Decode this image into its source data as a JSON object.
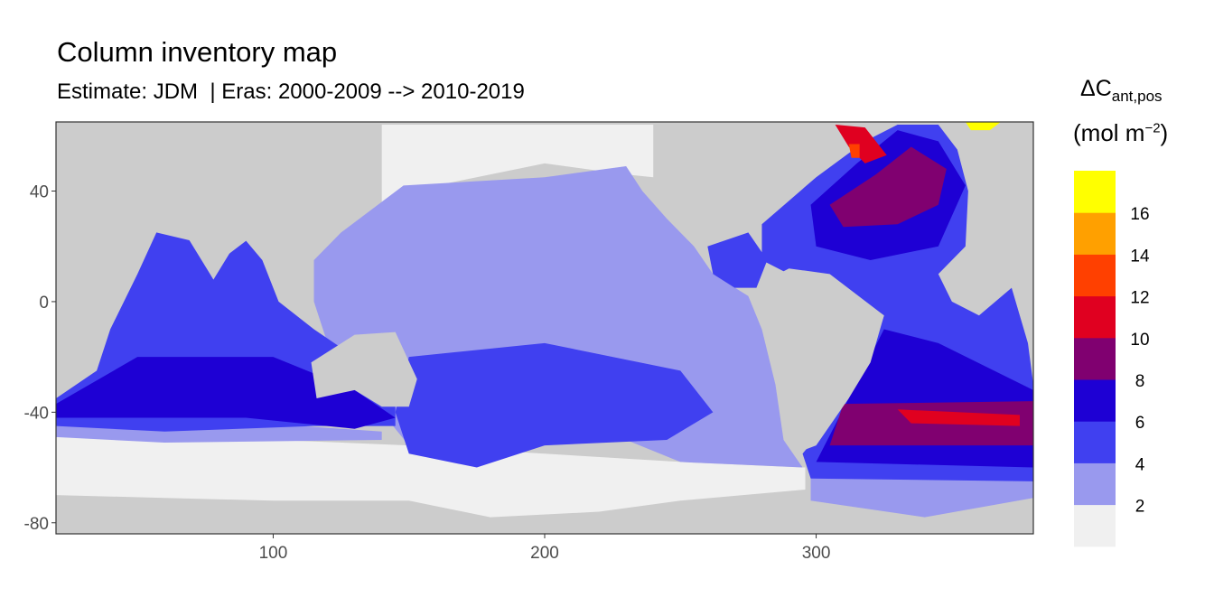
{
  "chart_data": {
    "type": "heatmap",
    "title": "Column inventory map",
    "subtitle": "Estimate: JDM  | Eras: 2000-2009 --> 2010-2019",
    "xlabel": "",
    "ylabel": "",
    "xlim": [
      20,
      380
    ],
    "ylim": [
      -84,
      65
    ],
    "x_ticks": [
      "100",
      "200",
      "300"
    ],
    "x_tick_values": [
      100,
      200,
      300
    ],
    "y_ticks": [
      "40",
      "0",
      "-40",
      "-80"
    ],
    "y_tick_values": [
      40,
      0,
      -40,
      -80
    ],
    "grid": false,
    "land_color": "#cccccc",
    "legend": {
      "title_main": "ΔC",
      "title_sub": "ant,pos",
      "unit_main": "(mol m",
      "unit_sup": "−2",
      "unit_close": ")",
      "placement": "right",
      "bin_colors": [
        "#f0f0f0",
        "#9999ee",
        "#4040f0",
        "#1e00d4",
        "#800070",
        "#e00020",
        "#ff4000",
        "#ffa000",
        "#ffff00"
      ],
      "break_labels": [
        "2",
        "4",
        "6",
        "8",
        "10",
        "12",
        "14",
        "16"
      ]
    },
    "regions": [
      {
        "name": "southern-ocean-band",
        "level": 0,
        "lonlat": [
          [
            20,
            -47
          ],
          [
            60,
            -49
          ],
          [
            100,
            -50
          ],
          [
            150,
            -52
          ],
          [
            200,
            -55
          ],
          [
            250,
            -58
          ],
          [
            296,
            -60
          ],
          [
            296,
            -68
          ],
          [
            250,
            -72
          ],
          [
            220,
            -76
          ],
          [
            180,
            -78
          ],
          [
            150,
            -72
          ],
          [
            100,
            -72
          ],
          [
            60,
            -71
          ],
          [
            20,
            -70
          ]
        ]
      },
      {
        "name": "arctic-north-pacific",
        "level": 0,
        "lonlat": [
          [
            140,
            64
          ],
          [
            240,
            64
          ],
          [
            240,
            45
          ],
          [
            230,
            46
          ],
          [
            200,
            50
          ],
          [
            160,
            42
          ],
          [
            140,
            32
          ]
        ]
      },
      {
        "name": "pacific",
        "level": 1,
        "lonlat": [
          [
            125,
            25
          ],
          [
            148,
            42
          ],
          [
            200,
            45
          ],
          [
            230,
            49
          ],
          [
            236,
            40
          ],
          [
            245,
            30
          ],
          [
            255,
            20
          ],
          [
            262,
            10
          ],
          [
            275,
            2
          ],
          [
            280,
            -10
          ],
          [
            285,
            -30
          ],
          [
            288,
            -50
          ],
          [
            295,
            -60
          ],
          [
            250,
            -58
          ],
          [
            230,
            -50
          ],
          [
            200,
            -52
          ],
          [
            170,
            -55
          ],
          [
            150,
            -52
          ],
          [
            140,
            -40
          ],
          [
            120,
            -15
          ],
          [
            115,
            0
          ],
          [
            115,
            15
          ]
        ]
      },
      {
        "name": "indian-ocean-west-mid",
        "level": 1,
        "lonlat": [
          [
            20,
            -42
          ],
          [
            60,
            -44
          ],
          [
            110,
            -45
          ],
          [
            140,
            -47
          ],
          [
            140,
            -50
          ],
          [
            60,
            -51
          ],
          [
            20,
            -49
          ]
        ]
      },
      {
        "name": "south-west-pacific",
        "level": 2,
        "lonlat": [
          [
            150,
            -20
          ],
          [
            200,
            -15
          ],
          [
            250,
            -25
          ],
          [
            262,
            -40
          ],
          [
            245,
            -50
          ],
          [
            200,
            -52
          ],
          [
            175,
            -60
          ],
          [
            150,
            -55
          ],
          [
            145,
            -40
          ]
        ]
      },
      {
        "name": "eastern-tropical-pacific",
        "level": 2,
        "lonlat": [
          [
            260,
            20
          ],
          [
            275,
            25
          ],
          [
            282,
            15
          ],
          [
            278,
            5
          ],
          [
            270,
            5
          ],
          [
            262,
            10
          ]
        ]
      },
      {
        "name": "indian-ocean",
        "level": 2,
        "lonlat": [
          [
            40,
            -10
          ],
          [
            50,
            10
          ],
          [
            57,
            25
          ],
          [
            70,
            22
          ],
          [
            78,
            8
          ],
          [
            82,
            16
          ],
          [
            90,
            22
          ],
          [
            96,
            15
          ],
          [
            102,
            0
          ],
          [
            115,
            -10
          ],
          [
            130,
            -20
          ],
          [
            145,
            -38
          ],
          [
            145,
            -45
          ],
          [
            115,
            -45
          ],
          [
            60,
            -47
          ],
          [
            20,
            -45
          ],
          [
            20,
            -35
          ],
          [
            35,
            -25
          ]
        ]
      },
      {
        "name": "southern-indian-ocean",
        "level": 3,
        "lonlat": [
          [
            20,
            -37
          ],
          [
            50,
            -20
          ],
          [
            100,
            -20
          ],
          [
            130,
            -32
          ],
          [
            145,
            -42
          ],
          [
            130,
            -46
          ],
          [
            90,
            -42
          ],
          [
            60,
            -42
          ],
          [
            20,
            -42
          ]
        ]
      },
      {
        "name": "india",
        "level": -1,
        "lonlat": [
          [
            68,
            24
          ],
          [
            78,
            8
          ],
          [
            88,
            24
          ]
        ]
      },
      {
        "name": "australia",
        "level": -1,
        "lonlat": [
          [
            114,
            -22
          ],
          [
            130,
            -12
          ],
          [
            145,
            -11
          ],
          [
            153,
            -28
          ],
          [
            150,
            -38
          ],
          [
            140,
            -38
          ],
          [
            130,
            -32
          ],
          [
            116,
            -35
          ]
        ]
      },
      {
        "name": "atlantic",
        "level": 2,
        "lonlat": [
          [
            280,
            28
          ],
          [
            300,
            45
          ],
          [
            318,
            58
          ],
          [
            330,
            64
          ],
          [
            345,
            64
          ],
          [
            352,
            55
          ],
          [
            356,
            40
          ],
          [
            355,
            20
          ],
          [
            345,
            10
          ],
          [
            350,
            0
          ],
          [
            360,
            -5
          ],
          [
            372,
            5
          ],
          [
            378,
            -15
          ],
          [
            380,
            -30
          ],
          [
            380,
            -70
          ],
          [
            300,
            -70
          ],
          [
            295,
            -55
          ],
          [
            312,
            -35
          ],
          [
            320,
            -20
          ],
          [
            325,
            -5
          ],
          [
            310,
            5
          ],
          [
            290,
            10
          ],
          [
            280,
            15
          ]
        ]
      },
      {
        "name": "north-atlantic-deep",
        "level": 3,
        "lonlat": [
          [
            298,
            35
          ],
          [
            315,
            50
          ],
          [
            330,
            62
          ],
          [
            345,
            58
          ],
          [
            355,
            42
          ],
          [
            345,
            20
          ],
          [
            320,
            15
          ],
          [
            300,
            20
          ]
        ]
      },
      {
        "name": "north-atlantic-core",
        "level": 4,
        "lonlat": [
          [
            305,
            35
          ],
          [
            322,
            46
          ],
          [
            335,
            56
          ],
          [
            348,
            48
          ],
          [
            345,
            35
          ],
          [
            330,
            28
          ],
          [
            310,
            27
          ]
        ]
      },
      {
        "name": "labrador-sea",
        "level": 5,
        "lonlat": [
          [
            307,
            64
          ],
          [
            318,
            63
          ],
          [
            326,
            53
          ],
          [
            318,
            50
          ],
          [
            312,
            56
          ]
        ]
      },
      {
        "name": "labrador-edge",
        "level": 6,
        "lonlat": [
          [
            312,
            57
          ],
          [
            316,
            57
          ],
          [
            316,
            52
          ],
          [
            313,
            52
          ]
        ]
      },
      {
        "name": "nordic-seas",
        "level": 8,
        "lonlat": [
          [
            355,
            65
          ],
          [
            368,
            65
          ],
          [
            364,
            62
          ],
          [
            357,
            62
          ]
        ]
      },
      {
        "name": "south-atlantic-deep",
        "level": 3,
        "lonlat": [
          [
            325,
            -10
          ],
          [
            345,
            -15
          ],
          [
            380,
            -32
          ],
          [
            380,
            -60
          ],
          [
            300,
            -58
          ],
          [
            312,
            -35
          ]
        ]
      },
      {
        "name": "south-atlantic-core",
        "level": 4,
        "lonlat": [
          [
            310,
            -37
          ],
          [
            380,
            -36
          ],
          [
            380,
            -52
          ],
          [
            305,
            -52
          ]
        ]
      },
      {
        "name": "south-atlantic-max",
        "level": 5,
        "lonlat": [
          [
            330,
            -39
          ],
          [
            375,
            -41
          ],
          [
            375,
            -45
          ],
          [
            335,
            -44
          ]
        ]
      },
      {
        "name": "weddell-sea",
        "level": 1,
        "lonlat": [
          [
            298,
            -64
          ],
          [
            380,
            -65
          ],
          [
            380,
            -71
          ],
          [
            340,
            -78
          ],
          [
            298,
            -72
          ]
        ]
      },
      {
        "name": "south-america",
        "level": -1,
        "lonlat": [
          [
            282,
            8
          ],
          [
            290,
            12
          ],
          [
            305,
            10
          ],
          [
            325,
            -5
          ],
          [
            320,
            -22
          ],
          [
            312,
            -35
          ],
          [
            300,
            -52
          ],
          [
            292,
            -55
          ],
          [
            288,
            -40
          ],
          [
            285,
            -20
          ],
          [
            279,
            -5
          ]
        ]
      }
    ]
  }
}
